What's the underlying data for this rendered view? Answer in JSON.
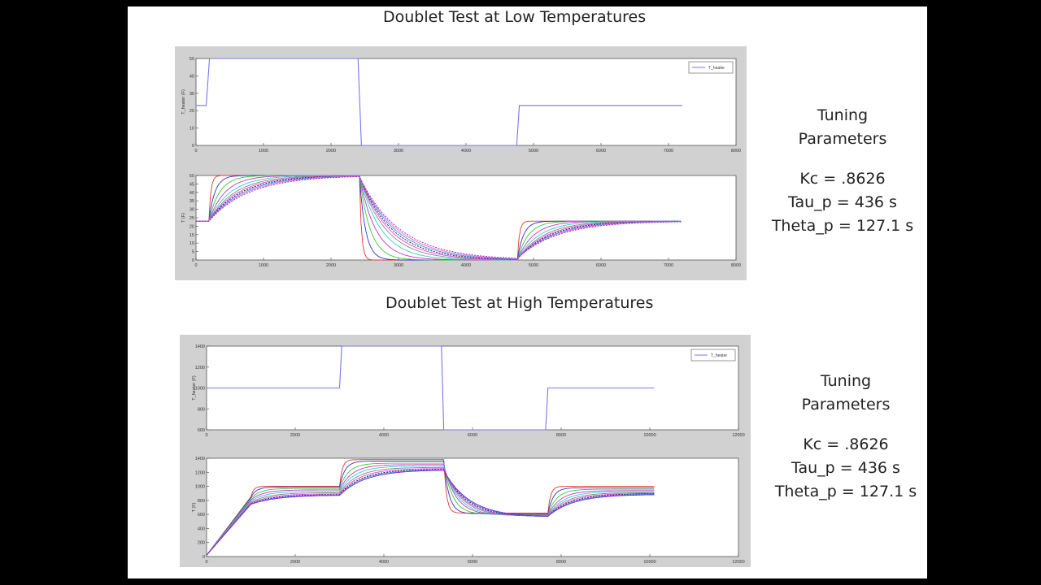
{
  "slide": {
    "sections": [
      {
        "title": "Doublet Test at Low Temperatures",
        "tuning": {
          "heading_line1": "Tuning",
          "heading_line2": "Parameters",
          "kc": "Kc = .8626",
          "tau": "Tau_p = 436 s",
          "theta": "Theta_p = 127.1 s"
        }
      },
      {
        "title": "Doublet Test at High Temperatures",
        "tuning": {
          "heading_line1": "Tuning",
          "heading_line2": "Parameters",
          "kc": "Kc = .8626",
          "tau": "Tau_p = 436 s",
          "theta": "Theta_p = 127.1 s"
        }
      }
    ]
  },
  "chart_data": [
    {
      "type": "line",
      "name": "low-heater",
      "ylabel": "T_heater (F)",
      "xlim": [
        0,
        8000
      ],
      "ylim": [
        0,
        50
      ],
      "xticks": [
        0,
        1000,
        2000,
        3000,
        4000,
        5000,
        6000,
        7000,
        8000
      ],
      "yticks": [
        0,
        10,
        20,
        30,
        40,
        50
      ],
      "legend": {
        "label": "T_heater",
        "placement": "top-right"
      },
      "series": [
        {
          "color": "#7777ee",
          "points": [
            [
              0,
              23
            ],
            [
              150,
              23
            ],
            [
              200,
              50
            ],
            [
              2400,
              50
            ],
            [
              2450,
              0
            ],
            [
              4750,
              0
            ],
            [
              4790,
              23
            ],
            [
              7200,
              23
            ]
          ]
        }
      ]
    },
    {
      "type": "line",
      "name": "low-response",
      "ylabel": "T (F)",
      "xlim": [
        0,
        8000
      ],
      "ylim": [
        0,
        50
      ],
      "xticks": [
        0,
        1000,
        2000,
        3000,
        4000,
        5000,
        6000,
        7000,
        8000
      ],
      "yticks": [
        0,
        5,
        10,
        15,
        20,
        25,
        30,
        35,
        40,
        45,
        50
      ],
      "model": {
        "base": 23,
        "high": 50,
        "low": 0,
        "t1": 190,
        "t2": 2420,
        "t3": 4760,
        "t_end": 7200
      },
      "series_taus": [
        30,
        90,
        160,
        240,
        320,
        390,
        440,
        480,
        520,
        560,
        600
      ],
      "series_colors": [
        "#ee3333",
        "#3333cc",
        "#33cc33",
        "#cc33cc",
        "#33cccc",
        "#888888",
        "#ee44ee",
        "#111111",
        "#3399ff",
        "#ff66cc",
        "#8822cc"
      ]
    },
    {
      "type": "line",
      "name": "high-heater",
      "ylabel": "T_heater (F)",
      "xlim": [
        0,
        12000
      ],
      "ylim": [
        600,
        1400
      ],
      "xticks": [
        0,
        2000,
        4000,
        6000,
        8000,
        10000,
        12000
      ],
      "yticks": [
        600,
        800,
        1000,
        1200,
        1400
      ],
      "legend": {
        "label": "T_heater",
        "placement": "top-right"
      },
      "series": [
        {
          "color": "#7777ee",
          "points": [
            [
              0,
              1000
            ],
            [
              3000,
              1000
            ],
            [
              3050,
              1400
            ],
            [
              5300,
              1400
            ],
            [
              5350,
              600
            ],
            [
              7650,
              600
            ],
            [
              7700,
              1000
            ],
            [
              10100,
              1000
            ]
          ]
        }
      ]
    },
    {
      "type": "line",
      "name": "high-response",
      "ylabel": "T (F)",
      "xlim": [
        0,
        12000
      ],
      "ylim": [
        0,
        1400
      ],
      "xticks": [
        0,
        2000,
        4000,
        6000,
        8000,
        10000,
        12000
      ],
      "yticks": [
        0,
        200,
        400,
        600,
        800,
        1000,
        1200,
        1400
      ],
      "model": {
        "ramp_end": 1000,
        "t1": 3000,
        "t2": 5350,
        "t3": 7700,
        "t_end": 10100
      },
      "series_params": [
        {
          "c": "#ee3333",
          "p": 1000,
          "a": 1380,
          "b": 620,
          "d": 1000,
          "tau": 60
        },
        {
          "c": "#3333cc",
          "p": 990,
          "a": 1360,
          "b": 610,
          "d": 980,
          "tau": 120
        },
        {
          "c": "#33cc33",
          "p": 970,
          "a": 1330,
          "b": 600,
          "d": 960,
          "tau": 200
        },
        {
          "c": "#cc33cc",
          "p": 950,
          "a": 1310,
          "b": 590,
          "d": 940,
          "tau": 280
        },
        {
          "c": "#33cccc",
          "p": 930,
          "a": 1290,
          "b": 580,
          "d": 925,
          "tau": 340
        },
        {
          "c": "#888888",
          "p": 910,
          "a": 1270,
          "b": 575,
          "d": 910,
          "tau": 400
        },
        {
          "c": "#ee44ee",
          "p": 895,
          "a": 1255,
          "b": 570,
          "d": 900,
          "tau": 450
        },
        {
          "c": "#111111",
          "p": 885,
          "a": 1245,
          "b": 565,
          "d": 895,
          "tau": 500
        },
        {
          "c": "#3399ff",
          "p": 880,
          "a": 1240,
          "b": 562,
          "d": 890,
          "tau": 540
        },
        {
          "c": "#8822cc",
          "p": 875,
          "a": 1235,
          "b": 560,
          "d": 885,
          "tau": 580
        }
      ]
    }
  ]
}
